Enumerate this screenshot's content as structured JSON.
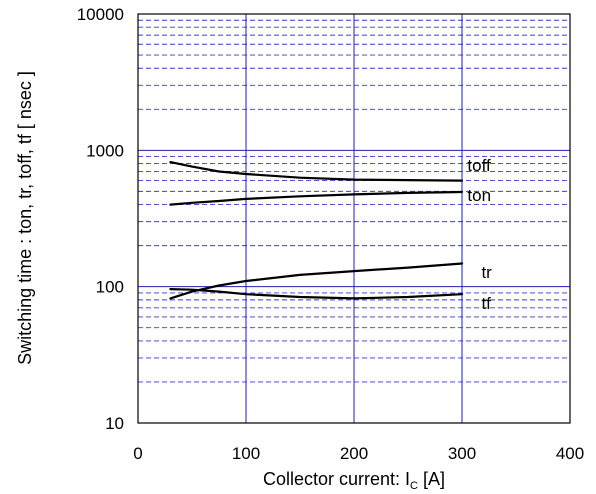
{
  "chart_data": {
    "type": "line",
    "xlabel": "Collector current: I",
    "xlabel_sub": "C",
    "xlabel_unit": " [A]",
    "ylabel": "Switching time  :  ton, tr, toff, tf  [ nsec ]",
    "xlim": [
      0,
      400
    ],
    "ylim": [
      10,
      10000
    ],
    "yscale": "log",
    "x_ticks": [
      0,
      100,
      200,
      300,
      400
    ],
    "y_ticks": [
      10,
      100,
      1000,
      10000
    ],
    "grid": true,
    "series": [
      {
        "name": "toff",
        "x": [
          30,
          50,
          75,
          100,
          150,
          200,
          250,
          300
        ],
        "y": [
          820,
          760,
          700,
          670,
          630,
          610,
          605,
          600
        ]
      },
      {
        "name": "ton",
        "x": [
          30,
          50,
          75,
          100,
          150,
          200,
          250,
          300
        ],
        "y": [
          400,
          412,
          425,
          440,
          460,
          475,
          487,
          495
        ]
      },
      {
        "name": "tr",
        "x": [
          30,
          50,
          75,
          100,
          150,
          200,
          250,
          300
        ],
        "y": [
          82,
          92,
          102,
          110,
          122,
          130,
          138,
          148
        ]
      },
      {
        "name": "tf",
        "x": [
          30,
          50,
          75,
          100,
          150,
          200,
          250,
          300
        ],
        "y": [
          96,
          95,
          92,
          88,
          84,
          82,
          84,
          88
        ]
      }
    ],
    "annotations": [
      {
        "text": "toff",
        "x": 305,
        "y": 780
      },
      {
        "text": "ton",
        "x": 305,
        "y": 470
      },
      {
        "text": "tr",
        "x": 318,
        "y": 128
      },
      {
        "text": "tf",
        "x": 318,
        "y": 76
      }
    ]
  }
}
